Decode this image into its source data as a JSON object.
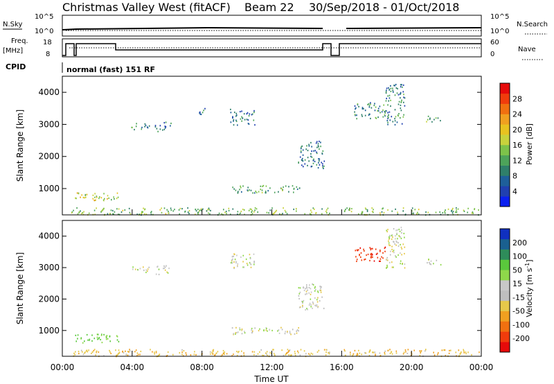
{
  "header": {
    "title": "Christmas Valley West (fitACF)",
    "beam": "Beam 22",
    "date_range": "30/Sep/2018 - 01/Oct/2018"
  },
  "status_panel": {
    "nsky_label": "N.Sky",
    "nsky_ticks": [
      "10^5",
      "10^0"
    ],
    "nsearch_label": "N.Search",
    "nsearch_ticks": [
      "10^5",
      "10^0"
    ],
    "freq_label_top": "Freq.",
    "freq_label_bottom": "[MHz]",
    "freq_ticks": [
      "18",
      "8"
    ],
    "nave_label": "Nave",
    "nave_ticks": [
      "60",
      "0"
    ],
    "cpid_label": "CPID",
    "cpid_value": "normal (fast) 151 RF"
  },
  "colors": {
    "power_scale": [
      "#0a20f0",
      "#2040b0",
      "#1e5f9a",
      "#2f7f6a",
      "#4da35a",
      "#7dc24a",
      "#c8d23c",
      "#e8c220",
      "#f0a020",
      "#f07010",
      "#f03c0c",
      "#e60a0a"
    ],
    "velocity_scale": [
      "#e60a0a",
      "#f03c0c",
      "#f07010",
      "#f0a020",
      "#e6c84a",
      "#bebebe",
      "#c8c8c8",
      "#8fd84a",
      "#5ac83c",
      "#2e8c5a",
      "#1a6090",
      "#1030c0"
    ],
    "ground_scatter": "#888888"
  },
  "chart_data": [
    {
      "type": "heatmap",
      "name": "Power",
      "ylabel": "Slant Range [km]",
      "ylim": [
        180,
        4500
      ],
      "yticks": [
        "1000",
        "2000",
        "3000",
        "4000"
      ],
      "colorbar": {
        "label": "Power [dB]",
        "range": [
          0,
          32
        ],
        "ticks": [
          "4",
          "8",
          "12",
          "16",
          "20",
          "24",
          "28"
        ]
      },
      "regions": [
        {
          "t": [
            0.7,
            3.2
          ],
          "r": [
            630,
            900
          ],
          "v": 17
        },
        {
          "t": [
            9.7,
            13.6
          ],
          "r": [
            880,
            1120
          ],
          "v": 12
        },
        {
          "t": [
            3.8,
            5.0
          ],
          "r": [
            2850,
            3050
          ],
          "v": 10
        },
        {
          "t": [
            5.3,
            6.2
          ],
          "r": [
            2800,
            3100
          ],
          "v": 9
        },
        {
          "t": [
            7.8,
            8.3
          ],
          "r": [
            3300,
            3600
          ],
          "v": 8
        },
        {
          "t": [
            9.6,
            11.0
          ],
          "r": [
            3000,
            3500
          ],
          "v": 8
        },
        {
          "t": [
            13.5,
            15.0
          ],
          "r": [
            1650,
            2500
          ],
          "v": 8
        },
        {
          "t": [
            16.7,
            18.5
          ],
          "r": [
            3200,
            3700
          ],
          "v": 10
        },
        {
          "t": [
            18.5,
            19.6
          ],
          "r": [
            3000,
            4300
          ],
          "v": 9
        },
        {
          "t": [
            20.8,
            21.7
          ],
          "r": [
            3100,
            3300
          ],
          "v": 12
        },
        {
          "t": [
            0.5,
            15.3
          ],
          "r": [
            200,
            420
          ],
          "v": 14
        },
        {
          "t": [
            16.1,
            23.9
          ],
          "r": [
            200,
            420
          ],
          "v": 14
        }
      ]
    },
    {
      "type": "heatmap",
      "name": "Velocity",
      "xlabel": "Time UT",
      "ylabel": "Slant Range [km]",
      "ylim": [
        180,
        4500
      ],
      "yticks": [
        "1000",
        "2000",
        "3000",
        "4000"
      ],
      "xticks": [
        "00:00",
        "04:00",
        "08:00",
        "12:00",
        "16:00",
        "20:00",
        "00:00"
      ],
      "colorbar": {
        "label": "Velocity [m s^-1]",
        "ticks": [
          "200",
          "100",
          "50",
          "15",
          "-15",
          "-50",
          "-100",
          "-200"
        ]
      },
      "regions": [
        {
          "t": [
            0.7,
            3.2
          ],
          "r": [
            630,
            900
          ],
          "v": 60
        },
        {
          "t": [
            9.7,
            13.6
          ],
          "r": [
            880,
            1120
          ],
          "v": 0
        },
        {
          "t": [
            3.8,
            5.0
          ],
          "r": [
            2850,
            3050
          ],
          "v": 0
        },
        {
          "t": [
            5.3,
            6.2
          ],
          "r": [
            2800,
            3100
          ],
          "v": 0
        },
        {
          "t": [
            9.6,
            11.0
          ],
          "r": [
            3000,
            3500
          ],
          "v": 0
        },
        {
          "t": [
            13.5,
            15.0
          ],
          "r": [
            1650,
            2500
          ],
          "v": 0
        },
        {
          "t": [
            16.7,
            18.5
          ],
          "r": [
            3200,
            3700
          ],
          "v": -180
        },
        {
          "t": [
            18.5,
            19.6
          ],
          "r": [
            3000,
            4300
          ],
          "v": 0
        },
        {
          "t": [
            20.8,
            21.7
          ],
          "r": [
            3100,
            3300
          ],
          "v": 0
        },
        {
          "t": [
            0.5,
            15.3
          ],
          "r": [
            200,
            420
          ],
          "v": -40
        },
        {
          "t": [
            16.1,
            23.9
          ],
          "r": [
            200,
            420
          ],
          "v": -40
        }
      ]
    }
  ]
}
